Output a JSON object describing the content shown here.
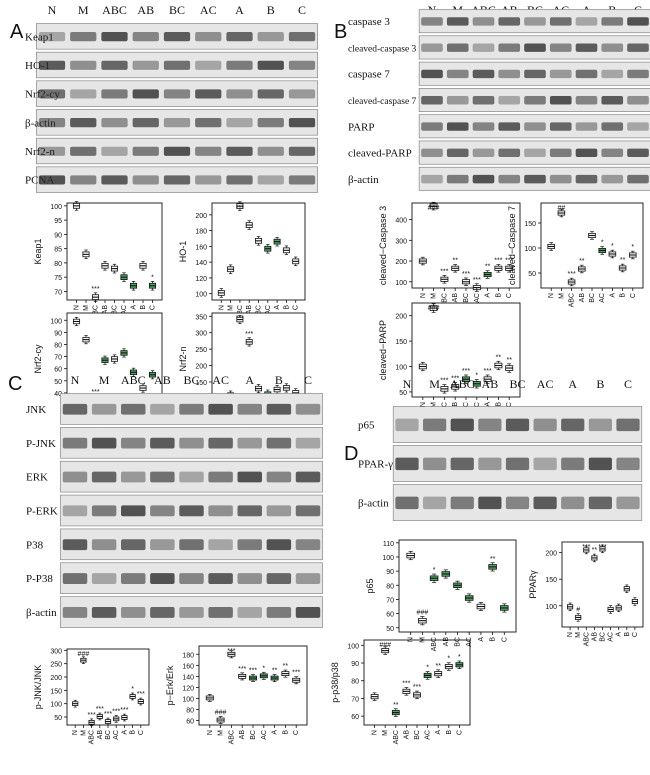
{
  "panels": [
    {
      "id": "A",
      "letter": "A",
      "lanes": [
        "N",
        "M",
        "ABC",
        "AB",
        "BC",
        "AC",
        "A",
        "B",
        "C"
      ],
      "rows": [
        "Keap1",
        "HO-1",
        "Nrf2-cy",
        "β-actin",
        "Nrf2-n",
        "PCNA"
      ],
      "charts": [
        {
          "ylabel": "Keap1",
          "yticks": [
            "70",
            "75",
            "80",
            "85",
            "90",
            "95",
            "100"
          ],
          "ylim": [
            67,
            101
          ],
          "values": [
            100,
            83,
            68,
            79,
            78,
            75,
            72,
            79,
            72
          ],
          "annotations": [
            "",
            "",
            "***",
            "",
            "",
            "",
            "",
            "",
            "*"
          ],
          "green": [
            false,
            false,
            false,
            false,
            false,
            true,
            true,
            false,
            true
          ]
        },
        {
          "ylabel": "HO-1",
          "yticks": [
            "100",
            "120",
            "140",
            "160",
            "180",
            "200"
          ],
          "ylim": [
            92,
            215
          ],
          "values": [
            101,
            131,
            211,
            187,
            167,
            157,
            166,
            155,
            141
          ],
          "annotations": [
            "",
            "",
            "***",
            "",
            "",
            "",
            "",
            "",
            ""
          ],
          "green": [
            false,
            false,
            false,
            false,
            false,
            true,
            true,
            false,
            false
          ]
        },
        {
          "ylabel": "Nrf2-cy",
          "yticks": [
            "40",
            "50",
            "60",
            "70",
            "80",
            "90",
            "100"
          ],
          "ylim": [
            30,
            106
          ],
          "values": [
            99,
            84,
            34,
            67,
            68,
            73,
            57,
            44,
            55
          ],
          "annotations": [
            "",
            "",
            "***",
            "",
            "",
            "",
            "",
            "",
            ""
          ],
          "green": [
            false,
            false,
            false,
            true,
            false,
            true,
            true,
            false,
            true
          ]
        },
        {
          "ylabel": "Nrf2-n",
          "yticks": [
            "100",
            "150",
            "200",
            "250",
            "300",
            "350"
          ],
          "ylim": [
            80,
            360
          ],
          "values": [
            101,
            110,
            340,
            272,
            130,
            113,
            127,
            132,
            117
          ],
          "annotations": [
            "",
            "",
            "***",
            "***",
            "",
            "",
            "",
            "",
            ""
          ],
          "green": [
            false,
            false,
            false,
            false,
            false,
            true,
            false,
            false,
            false
          ]
        }
      ]
    },
    {
      "id": "B",
      "letter": "B",
      "lanes": [
        "N",
        "M",
        "ABC",
        "AB",
        "BC",
        "AC",
        "A",
        "B",
        "C"
      ],
      "rows": [
        "caspase 3",
        "cleaved-caspase 3",
        "caspase 7",
        "cleaved-caspase 7",
        "PARP",
        "cleaved-PARP",
        "β-actin"
      ],
      "charts": [
        {
          "ylabel": "cleaved−Caspase 3",
          "yticks": [
            "100",
            "200",
            "300",
            "400"
          ],
          "ylim": [
            70,
            480
          ],
          "values": [
            200,
            465,
            112,
            165,
            100,
            72,
            135,
            165,
            165
          ],
          "annotations": [
            "",
            "###",
            "***",
            "**",
            "***",
            "***",
            "**",
            "***",
            "***"
          ],
          "green": [
            false,
            false,
            false,
            false,
            false,
            false,
            true,
            false,
            false
          ]
        },
        {
          "ylabel": "cleaved−Caspase 7",
          "yticks": [
            "50",
            "100",
            "150"
          ],
          "ylim": [
            20,
            190
          ],
          "values": [
            103,
            170,
            32,
            58,
            125,
            95,
            88,
            60,
            86
          ],
          "annotations": [
            "",
            "##",
            "***",
            "**",
            "",
            "*",
            "*",
            "**",
            "*"
          ],
          "green": [
            false,
            false,
            false,
            false,
            false,
            true,
            false,
            false,
            false
          ]
        },
        {
          "ylabel": "cleaved−PARP",
          "yticks": [
            "50",
            "100",
            "150",
            "200"
          ],
          "ylim": [
            40,
            225
          ],
          "values": [
            100,
            215,
            56,
            60,
            75,
            66,
            75,
            102,
            97
          ],
          "annotations": [
            "",
            "###",
            "***",
            "***",
            "***",
            "*",
            "***",
            "**",
            "**"
          ],
          "green": [
            false,
            false,
            false,
            false,
            true,
            true,
            false,
            false,
            false
          ]
        }
      ]
    },
    {
      "id": "C",
      "letter": "C",
      "lanes": [
        "N",
        "M",
        "ABC",
        "AB",
        "BC",
        "AC",
        "A",
        "B",
        "C"
      ],
      "rows": [
        "JNK",
        "P-JNK",
        "ERK",
        "P-ERK",
        "P38",
        "P-P38",
        "β-actin"
      ],
      "charts": [
        {
          "ylabel": "p-JNK/JNK",
          "yticks": [
            "50",
            "100",
            "150",
            "200",
            "250",
            "300"
          ],
          "ylim": [
            20,
            305
          ],
          "values": [
            100,
            263,
            30,
            52,
            33,
            43,
            48,
            127,
            108
          ],
          "annotations": [
            "",
            "###",
            "***",
            "***",
            "***",
            "***",
            "***",
            "*",
            "***"
          ],
          "green": [
            false,
            false,
            false,
            false,
            false,
            false,
            false,
            false,
            false
          ]
        },
        {
          "ylabel": "p−Erk/Erk",
          "yticks": [
            "60",
            "80",
            "100",
            "120",
            "140",
            "160",
            "180"
          ],
          "ylim": [
            52,
            195
          ],
          "values": [
            101,
            61,
            180,
            140,
            137,
            141,
            137,
            145,
            133
          ],
          "annotations": [
            "",
            "###",
            "***",
            "***",
            "***",
            "*",
            "**",
            "**",
            "***"
          ],
          "green": [
            false,
            false,
            false,
            false,
            true,
            true,
            true,
            false,
            false
          ]
        },
        {
          "ylabel": "p-p38/p38",
          "yticks": [
            "60",
            "70",
            "80",
            "90",
            "100"
          ],
          "ylim": [
            55,
            103
          ],
          "values": [
            71,
            97,
            62,
            74,
            72,
            83,
            84,
            88,
            89
          ],
          "annotations": [
            "",
            "###",
            "**",
            "***",
            "***",
            "*",
            "**",
            "*",
            "*"
          ],
          "green": [
            false,
            false,
            true,
            false,
            false,
            true,
            false,
            false,
            true
          ]
        }
      ]
    },
    {
      "id": "D",
      "letter": "D",
      "lanes": [
        "N",
        "M",
        "ABC",
        "AB",
        "BC",
        "AC",
        "A",
        "B",
        "C"
      ],
      "rows": [
        "p65",
        "PPAR-γ",
        "β-actin"
      ],
      "charts": [
        {
          "ylabel": "p65",
          "yticks": [
            "50",
            "60",
            "70",
            "80",
            "90",
            "100",
            "110"
          ],
          "ylim": [
            47,
            112
          ],
          "values": [
            101,
            55,
            85,
            88,
            80,
            71,
            65,
            93,
            64
          ],
          "annotations": [
            "",
            "###",
            "*",
            "",
            "",
            "",
            "",
            "**",
            ""
          ],
          "green": [
            false,
            false,
            true,
            true,
            true,
            true,
            false,
            true,
            true
          ]
        },
        {
          "ylabel": "PPARγ",
          "yticks": [
            "100",
            "150",
            "200"
          ],
          "ylim": [
            60,
            220
          ],
          "values": [
            98,
            78,
            205,
            190,
            207,
            93,
            96,
            132,
            108
          ],
          "annotations": [
            "",
            "#",
            "***",
            "**",
            "***",
            "",
            "",
            "",
            ""
          ],
          "green": [
            false,
            false,
            false,
            false,
            false,
            false,
            false,
            false,
            false
          ]
        }
      ]
    }
  ],
  "colors": {
    "box_green": "#4fa866",
    "box_white": "#ffffff",
    "ink": "#111111",
    "blot_bg": "#dcdcdc"
  }
}
